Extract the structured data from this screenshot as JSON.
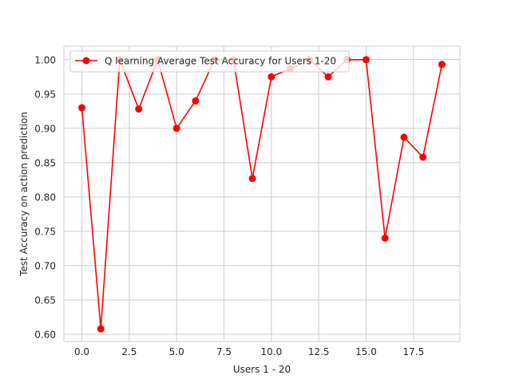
{
  "chart_data": {
    "type": "line",
    "xlabel": "Users 1 - 20",
    "ylabel": "Test Accuracy on action prediction",
    "xlim": [
      -0.95,
      19.95
    ],
    "ylim": [
      0.5895,
      1.0195
    ],
    "xticks": [
      0.0,
      2.5,
      5.0,
      7.5,
      10.0,
      12.5,
      15.0,
      17.5
    ],
    "xtick_labels": [
      "0.0",
      "2.5",
      "5.0",
      "7.5",
      "10.0",
      "12.5",
      "15.0",
      "17.5"
    ],
    "yticks": [
      0.6,
      0.65,
      0.7,
      0.75,
      0.8,
      0.85,
      0.9,
      0.95,
      1.0
    ],
    "ytick_labels": [
      "0.60",
      "0.65",
      "0.70",
      "0.75",
      "0.80",
      "0.85",
      "0.90",
      "0.95",
      "1.00"
    ],
    "grid": true,
    "legend_position": "top-left",
    "series": [
      {
        "name": "Q learning Average Test Accuracy for Users 1-20",
        "color": "#ff0000",
        "marker": "circle",
        "x": [
          0,
          1,
          2,
          3,
          4,
          5,
          6,
          7,
          8,
          9,
          10,
          11,
          12,
          13,
          14,
          15,
          16,
          17,
          18,
          19
        ],
        "values": [
          0.93,
          0.608,
          1.0,
          0.928,
          1.0,
          0.9,
          0.94,
          1.0,
          1.0,
          0.827,
          0.975,
          0.987,
          1.0,
          0.975,
          1.0,
          1.0,
          0.74,
          0.887,
          0.858,
          0.993
        ]
      }
    ]
  }
}
